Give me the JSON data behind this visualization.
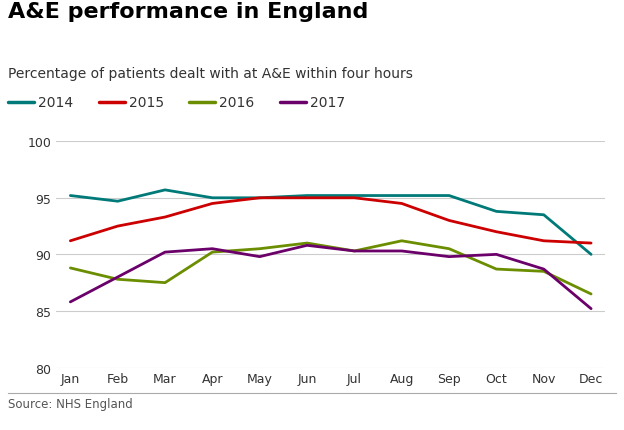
{
  "title": "A&E performance in England",
  "subtitle": "Percentage of patients dealt with at A&E within four hours",
  "source": "Source: NHS England",
  "months": [
    "Jan",
    "Feb",
    "Mar",
    "Apr",
    "May",
    "Jun",
    "Jul",
    "Aug",
    "Sep",
    "Oct",
    "Nov",
    "Dec"
  ],
  "series": {
    "2014": {
      "color": "#007A78",
      "values": [
        95.2,
        94.7,
        95.7,
        95.0,
        95.0,
        95.2,
        95.2,
        95.2,
        95.2,
        93.8,
        93.5,
        90.0
      ]
    },
    "2015": {
      "color": "#CC0000",
      "values": [
        91.2,
        92.5,
        93.3,
        94.5,
        95.0,
        95.0,
        95.0,
        94.5,
        93.0,
        92.0,
        91.2,
        91.0
      ]
    },
    "2016": {
      "color": "#6B8E00",
      "values": [
        88.8,
        87.8,
        87.5,
        90.2,
        90.5,
        91.0,
        90.3,
        91.2,
        90.5,
        88.7,
        88.5,
        86.5
      ]
    },
    "2017": {
      "color": "#6B006B",
      "values": [
        85.8,
        88.0,
        90.2,
        90.5,
        89.8,
        90.8,
        90.3,
        90.3,
        89.8,
        90.0,
        88.7,
        85.2
      ]
    }
  },
  "ylim": [
    80,
    100
  ],
  "yticks": [
    80,
    85,
    90,
    95,
    100
  ],
  "background_color": "#ffffff",
  "grid_color": "#cccccc",
  "title_fontsize": 16,
  "subtitle_fontsize": 10,
  "legend_fontsize": 10,
  "tick_fontsize": 9,
  "source_fontsize": 8.5,
  "line_width": 2.0,
  "bbc_box_color": "#404040",
  "bbc_text_color": "#ffffff"
}
